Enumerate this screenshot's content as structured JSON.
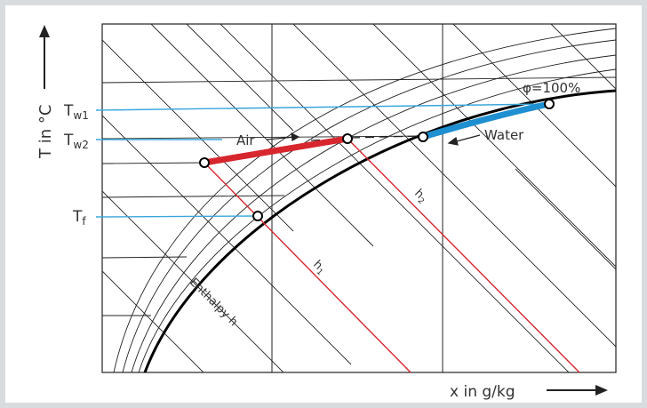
{
  "axes": {
    "y_label": "T in °C",
    "x_label": "x in g/kg"
  },
  "temperatures": {
    "tw1": {
      "main": "T",
      "sub": "w1"
    },
    "tw2": {
      "main": "T",
      "sub": "w2"
    },
    "tf": {
      "main": "T",
      "sub": "f"
    }
  },
  "annotations": {
    "air": "Air",
    "water": "Water",
    "saturation": "φ=100%",
    "enthalpy": "Enthalpy h",
    "h1": {
      "main": "h",
      "sub": "1"
    },
    "h2": {
      "main": "h",
      "sub": "2"
    }
  },
  "colors": {
    "air_path": "#d7262e",
    "water_path": "#1e8fd0",
    "temperature_lines": "#3aa6dc",
    "enthalpy_lines": "#d7262e",
    "grid": "#222222",
    "saturation_curve": "#000000"
  }
}
